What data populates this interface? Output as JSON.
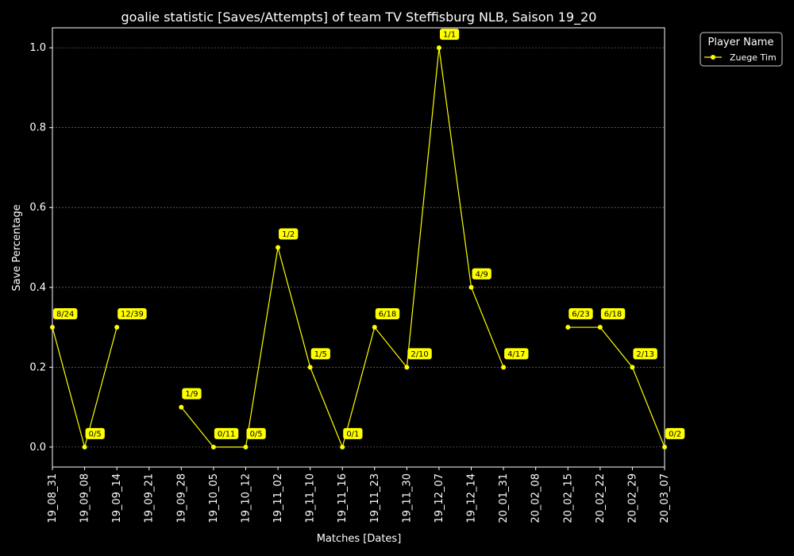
{
  "chart_data": {
    "type": "line",
    "title": "goalie statistic [Saves/Attempts] of team TV Steffisburg NLB, Saison 19_20",
    "xlabel": "Matches [Dates]",
    "ylabel": "Save Percentage",
    "ylim": [
      -0.05,
      1.05
    ],
    "yticks": [
      "0.0",
      "0.2",
      "0.4",
      "0.6",
      "0.8",
      "1.0"
    ],
    "grid": true,
    "legend_title": "Player Name",
    "legend_position": "outside-top-right",
    "categories": [
      "19_08_31",
      "19_09_08",
      "19_09_14",
      "19_09_21",
      "19_09_28",
      "19_10_05",
      "19_10_12",
      "19_11_02",
      "19_11_10",
      "19_11_16",
      "19_11_23",
      "19_11_30",
      "19_12_07",
      "19_12_14",
      "20_01_31",
      "20_02_08",
      "20_02_15",
      "20_02_22",
      "20_02_29",
      "20_03_07"
    ],
    "series": [
      {
        "name": "Zuege Tim",
        "color": "#ffff00",
        "values": [
          0.3,
          0.0,
          0.3,
          null,
          0.1,
          0.0,
          0.0,
          0.5,
          0.2,
          0.0,
          0.3,
          0.2,
          1.0,
          0.4,
          0.2,
          null,
          0.3,
          0.3,
          0.2,
          0.0
        ],
        "labels": [
          "8/24",
          "0/5",
          "12/39",
          null,
          "1/9",
          "0/11",
          "0/5",
          "1/2",
          "1/5",
          "0/1",
          "6/18",
          "2/10",
          "1/1",
          "4/9",
          "4/17",
          null,
          "6/23",
          "6/18",
          "2/13",
          "0/2"
        ]
      }
    ]
  },
  "colors": {
    "background": "#000000",
    "foreground": "#ffffff",
    "line": "#ffff00",
    "grid": "#888888"
  }
}
